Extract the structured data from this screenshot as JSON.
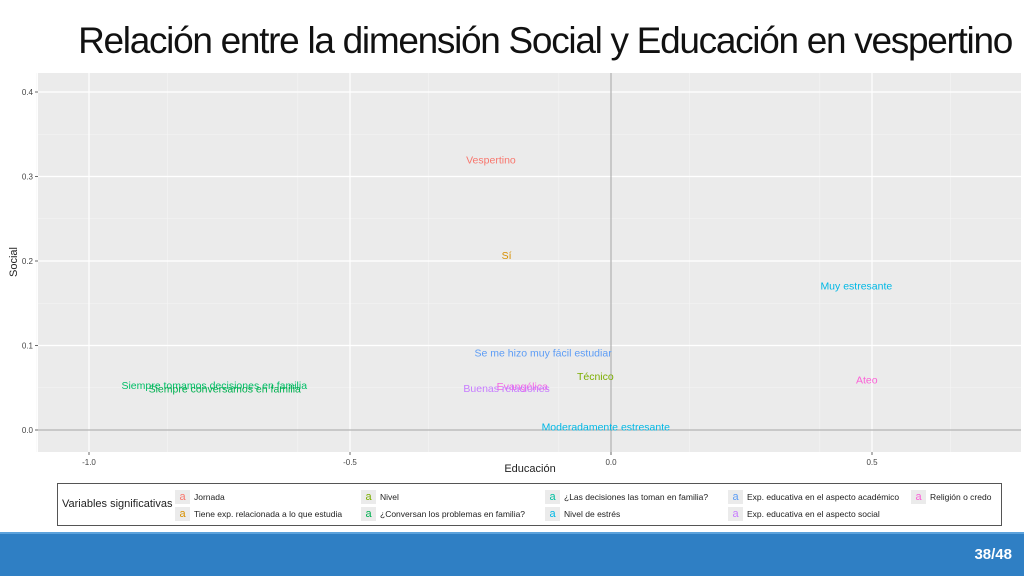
{
  "slide": {
    "title": "Relación entre la dimensión Social y Educación en vespertino",
    "page": "38/48"
  },
  "colors": {
    "footer": "#2f7fc4",
    "panel": "#ebebeb"
  },
  "chart_data": {
    "type": "scatter",
    "xlabel": "Educación",
    "ylabel": "Social",
    "xlim": [
      -1.1,
      0.8
    ],
    "ylim": [
      -0.02,
      0.41
    ],
    "x_ticks": [
      -1.0,
      -0.5,
      0.0,
      0.5
    ],
    "x_tick_labels": [
      "-1.0",
      "-0.5",
      "0.0",
      "0.5"
    ],
    "y_ticks": [
      0.0,
      0.1,
      0.2,
      0.3,
      0.4
    ],
    "y_tick_labels": [
      "0.0",
      "0.1",
      "0.2",
      "0.3",
      "0.4"
    ],
    "grid": true,
    "reference_lines": {
      "x": 0,
      "y": 0
    },
    "points": [
      {
        "label": "Vespertino",
        "x": -0.23,
        "y": 0.32,
        "color": "#f8766d"
      },
      {
        "label": "Sí",
        "x": -0.2,
        "y": 0.207,
        "color": "#d89000"
      },
      {
        "label": "Muy estresante",
        "x": 0.47,
        "y": 0.171,
        "color": "#00b8e5"
      },
      {
        "label": "Se me hizo muy fácil estudiar",
        "x": -0.13,
        "y": 0.092,
        "color": "#5c9cf5"
      },
      {
        "label": "Técnico",
        "x": -0.03,
        "y": 0.064,
        "color": "#7cae00"
      },
      {
        "label": "Siempre tomamos decisiones en familia",
        "x": -0.76,
        "y": 0.053,
        "color": "#00be67"
      },
      {
        "label": "Siempre conversamos en familia",
        "x": -0.74,
        "y": 0.049,
        "color": "#00b050"
      },
      {
        "label": "Evangélica",
        "x": -0.17,
        "y": 0.052,
        "color": "#f564e3"
      },
      {
        "label": "Buenas relaciones",
        "x": -0.2,
        "y": 0.05,
        "color": "#c77cff"
      },
      {
        "label": "Ateo",
        "x": 0.49,
        "y": 0.06,
        "color": "#fb61d7"
      },
      {
        "label": "Moderadamente estresante",
        "x": -0.01,
        "y": 0.004,
        "color": "#00b8e5"
      }
    ]
  },
  "legend": {
    "title": "Variables significativas",
    "key_glyph": "a",
    "items": [
      {
        "label": "Jornada",
        "color": "#f8766d"
      },
      {
        "label": "Tiene exp. relacionada a lo que estudia",
        "color": "#d89000"
      },
      {
        "label": "Nivel",
        "color": "#7cae00"
      },
      {
        "label": "¿Conversan los problemas en familia?",
        "color": "#00b050"
      },
      {
        "label": "¿Las decisiones las toman en familia?",
        "color": "#00bfa0"
      },
      {
        "label": "Nivel de estrés",
        "color": "#00b8e5"
      },
      {
        "label": "Exp. educativa en el aspecto académico",
        "color": "#5c9cf5"
      },
      {
        "label": "Exp. educativa en el aspecto social",
        "color": "#c77cff"
      },
      {
        "label": "Religión o credo",
        "color": "#fb61d7"
      }
    ]
  }
}
